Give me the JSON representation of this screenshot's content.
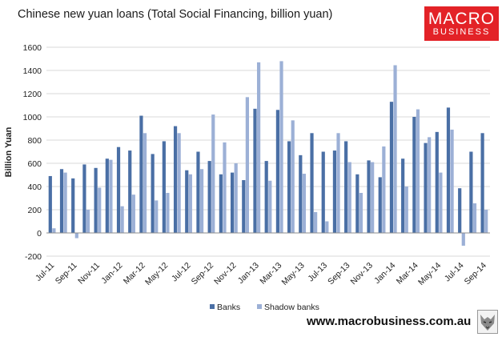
{
  "header": {
    "title": "Chinese new yuan loans (Total Social Financing, billion yuan)",
    "logo_line1": "MACRO",
    "logo_line2": "BUSINESS"
  },
  "footer": {
    "website": "www.macrobusiness.com.au"
  },
  "icons": {
    "logo": "macrobusiness-logo",
    "mascot": "wolf-icon"
  },
  "colors": {
    "banks": "#4a6fa5",
    "shadow_banks": "#9cb0d6",
    "logo_bg": "#e32227"
  },
  "chart_data": {
    "type": "bar",
    "title": "Chinese new yuan loans (Total Social Financing, billion yuan)",
    "ylabel": "Billion Yuan",
    "xlabel": "",
    "ylim": [
      -200,
      1600
    ],
    "yticks": [
      -200,
      0,
      200,
      400,
      600,
      800,
      1000,
      1200,
      1400,
      1600
    ],
    "grid": "horizontal",
    "legend_position": "bottom",
    "categories": [
      "Jul-11",
      "Aug-11",
      "Sep-11",
      "Oct-11",
      "Nov-11",
      "Dec-11",
      "Jan-12",
      "Feb-12",
      "Mar-12",
      "Apr-12",
      "May-12",
      "Jun-12",
      "Jul-12",
      "Aug-12",
      "Sep-12",
      "Oct-12",
      "Nov-12",
      "Dec-12",
      "Jan-13",
      "Feb-13",
      "Mar-13",
      "Apr-13",
      "May-13",
      "Jun-13",
      "Jul-13",
      "Aug-13",
      "Sep-13",
      "Oct-13",
      "Nov-13",
      "Dec-13",
      "Jan-14",
      "Feb-14",
      "Mar-14",
      "Apr-14",
      "May-14",
      "Jun-14",
      "Jul-14",
      "Aug-14",
      "Sep-14"
    ],
    "shown_tick_labels": [
      "Jul-11",
      "Sep-11",
      "Nov-11",
      "Jan-12",
      "Mar-12",
      "May-12",
      "Jul-12",
      "Sep-12",
      "Nov-12",
      "Jan-13",
      "Mar-13",
      "May-13",
      "Jul-13",
      "Sep-13",
      "Nov-13",
      "Jan-14",
      "Mar-14",
      "May-14",
      "Jul-14",
      "Sep-14"
    ],
    "series": [
      {
        "name": "Banks",
        "values": [
          490,
          550,
          470,
          590,
          560,
          640,
          740,
          710,
          1010,
          680,
          790,
          920,
          540,
          700,
          620,
          505,
          520,
          455,
          1070,
          620,
          1060,
          790,
          670,
          860,
          700,
          710,
          790,
          505,
          625,
          480,
          1130,
          640,
          1000,
          775,
          870,
          1080,
          385,
          700,
          860
        ]
      },
      {
        "name": "Shadow banks",
        "values": [
          40,
          520,
          -45,
          200,
          390,
          630,
          230,
          330,
          860,
          280,
          345,
          860,
          505,
          550,
          1020,
          780,
          600,
          1170,
          1470,
          450,
          1480,
          970,
          510,
          180,
          100,
          860,
          610,
          345,
          610,
          745,
          1445,
          400,
          1065,
          825,
          520,
          890,
          -110,
          255,
          200
        ]
      }
    ]
  }
}
